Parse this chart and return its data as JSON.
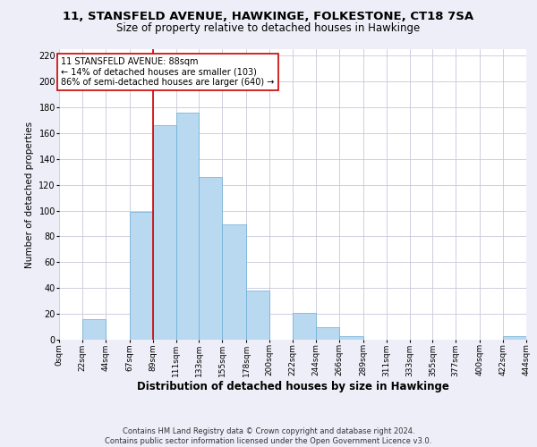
{
  "title": "11, STANSFELD AVENUE, HAWKINGE, FOLKESTONE, CT18 7SA",
  "subtitle": "Size of property relative to detached houses in Hawkinge",
  "xlabel": "Distribution of detached houses by size in Hawkinge",
  "ylabel": "Number of detached properties",
  "bar_color": "#b8d9f0",
  "bar_edge_color": "#6aadd5",
  "bin_edges": [
    0,
    22,
    44,
    67,
    89,
    111,
    133,
    155,
    178,
    200,
    222,
    244,
    266,
    289,
    311,
    333,
    355,
    377,
    400,
    422,
    444
  ],
  "bar_heights": [
    0,
    16,
    0,
    99,
    166,
    176,
    126,
    89,
    38,
    0,
    21,
    10,
    3,
    0,
    0,
    0,
    0,
    0,
    0,
    3
  ],
  "tick_labels": [
    "0sqm",
    "22sqm",
    "44sqm",
    "67sqm",
    "89sqm",
    "111sqm",
    "133sqm",
    "155sqm",
    "178sqm",
    "200sqm",
    "222sqm",
    "244sqm",
    "266sqm",
    "289sqm",
    "311sqm",
    "333sqm",
    "355sqm",
    "377sqm",
    "400sqm",
    "422sqm",
    "444sqm"
  ],
  "ylim": [
    0,
    225
  ],
  "yticks": [
    0,
    20,
    40,
    60,
    80,
    100,
    120,
    140,
    160,
    180,
    200,
    220
  ],
  "property_line_x": 89,
  "property_line_color": "#cc0000",
  "annotation_line1": "11 STANSFELD AVENUE: 88sqm",
  "annotation_line2": "← 14% of detached houses are smaller (103)",
  "annotation_line3": "86% of semi-detached houses are larger (640) →",
  "annotation_box_color": "#ffffff",
  "annotation_box_edge": "#cc0000",
  "footer_line1": "Contains HM Land Registry data © Crown copyright and database right 2024.",
  "footer_line2": "Contains public sector information licensed under the Open Government Licence v3.0.",
  "background_color": "#eeeef8",
  "plot_background": "#ffffff",
  "grid_color": "#c8c8dc",
  "title_fontsize": 9.5,
  "subtitle_fontsize": 8.5,
  "xlabel_fontsize": 8.5,
  "ylabel_fontsize": 7.5,
  "tick_fontsize": 6.5,
  "ytick_fontsize": 7,
  "annotation_fontsize": 7,
  "footer_fontsize": 6
}
